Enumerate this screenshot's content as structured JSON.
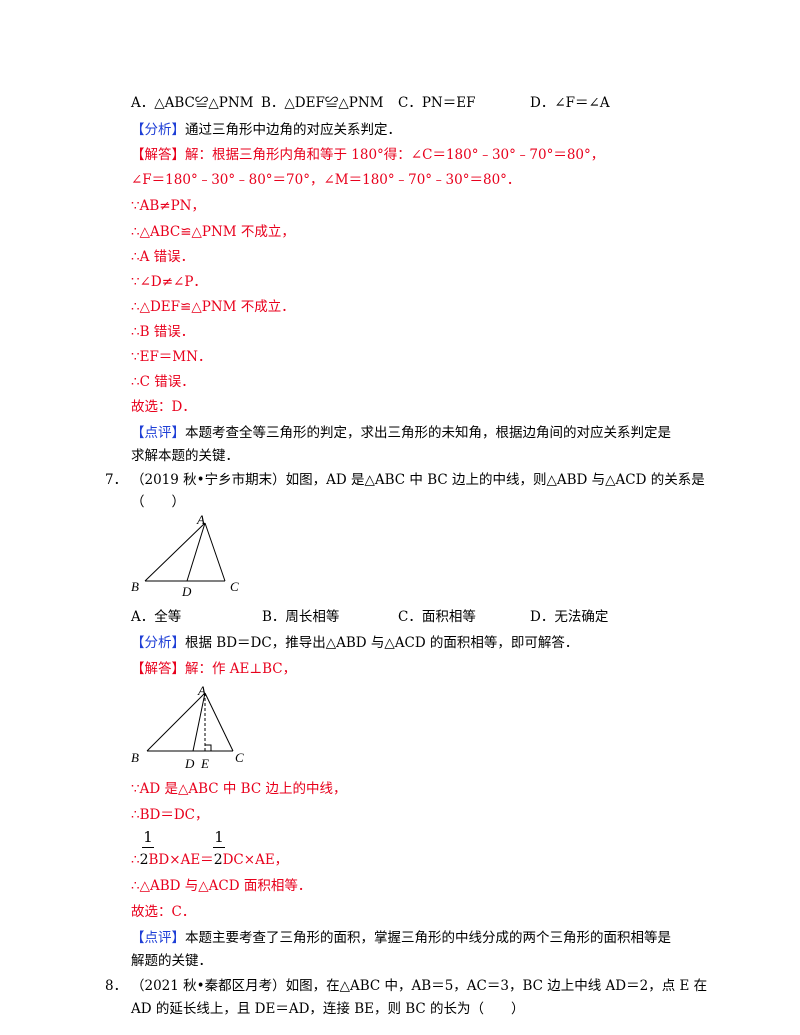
{
  "q6": {
    "options": [
      "A．△ABC≌△PNM",
      "B．△DEF≌△PNM",
      "C．PN＝EF",
      "D．∠F＝∠A"
    ],
    "analysis_tag": "【分析】",
    "analysis": "通过三角形中边角的对应关系判定．",
    "solution_tag": "【解答】",
    "solution_lines": [
      "解：根据三角形内角和等于 180°得：∠C＝180°﹣30°﹣70°＝80°，",
      "∠F＝180°﹣30°﹣80°＝70°，∠M＝180°﹣70°﹣30°＝80°．",
      "∵AB≠PN，",
      "∴△ABC≌△PNM 不成立，",
      "∴A 错误．",
      "∵∠D≠∠P．",
      "∴△DEF≌△PNM 不成立．",
      "∴B 错误．",
      "∵EF＝MN．",
      "∴C 错误．",
      "故选：D．"
    ],
    "comment_tag": "【点评】",
    "comment_lines": [
      "本题考查全等三角形的判定，求出三角形的未知角，根据边角间的对应关系判定是",
      "求解本题的关键．"
    ]
  },
  "q7": {
    "number": "7．",
    "stem_lines": [
      "（2019 秋•宁乡市期末）如图，AD 是△ABC 中 BC 边上的中线，则△ABD 与△ACD 的关系是",
      "（　　）"
    ],
    "figure1_labels": [
      "A",
      "B",
      "D",
      "C"
    ],
    "options": [
      "A．全等",
      "B．周长相等",
      "C．面积相等",
      "D．无法确定"
    ],
    "analysis_tag": "【分析】",
    "analysis": "根据 BD＝DC，推导出△ABD 与△ACD 的面积相等，即可解答．",
    "solution_tag": "【解答】",
    "solution_first": "解：作 AE⊥BC，",
    "figure2_labels": [
      "A",
      "B",
      "D",
      "E",
      "C"
    ],
    "solution_lines": [
      "∵AD 是△ABC 中 BC 边上的中线，",
      "∴BD＝DC，"
    ],
    "frac_num": "1",
    "frac_den": "2",
    "area_prefix": "∴",
    "area_left": "BD×AE＝",
    "area_right": "DC×AE，",
    "solution_tail": [
      "∴△ABD 与△ACD 面积相等．",
      "故选：C．"
    ],
    "comment_tag": "【点评】",
    "comment_lines": [
      "本题主要考查了三角形的面积，掌握三角形的中线分成的两个三角形的面积相等是",
      "解题的关键．"
    ]
  },
  "q8": {
    "number": "8．",
    "stem_lines": [
      "（2021 秋•秦都区月考）如图，在△ABC 中，AB＝5，AC＝3，BC 边上中线 AD＝2，点 E 在",
      "AD 的延长线上，且 DE＝AD，连接 BE，则 BC 的长为（　　）"
    ]
  }
}
